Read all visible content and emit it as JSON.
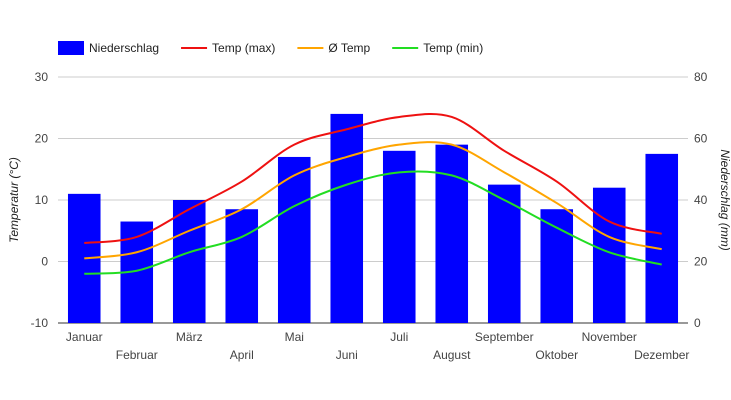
{
  "chart_data": {
    "type": "bar",
    "categories": [
      "Januar",
      "Februar",
      "März",
      "April",
      "Mai",
      "Juni",
      "Juli",
      "August",
      "September",
      "Oktober",
      "November",
      "Dezember"
    ],
    "series": [
      {
        "name": "Niederschlag",
        "kind": "bar",
        "axis": "right",
        "color": "#0000ff",
        "values": [
          42,
          33,
          40,
          37,
          54,
          68,
          56,
          58,
          45,
          37,
          44,
          55
        ]
      },
      {
        "name": "Temp (max)",
        "kind": "line",
        "axis": "left",
        "color": "#ee1111",
        "values": [
          3,
          4,
          8.5,
          13,
          19,
          21.5,
          23.5,
          23.5,
          18,
          13,
          6.5,
          4.5
        ]
      },
      {
        "name": "Ø Temp",
        "kind": "line",
        "axis": "left",
        "color": "#ffa500",
        "values": [
          0.5,
          1.5,
          5,
          8.5,
          14,
          17,
          19,
          19,
          14.5,
          9.5,
          4,
          2
        ]
      },
      {
        "name": "Temp (min)",
        "kind": "line",
        "axis": "left",
        "color": "#22dd22",
        "values": [
          -2,
          -1.5,
          1.5,
          4,
          9,
          12.5,
          14.5,
          14,
          10,
          5.5,
          1.5,
          -0.5
        ]
      }
    ],
    "ylabel_left": "Temperatur (°C)",
    "ylabel_right": "Niederschlag (mm)",
    "ylim_left": [
      -10,
      30
    ],
    "yticks_left": [
      -10,
      0,
      10,
      20,
      30
    ],
    "ylim_right": [
      0,
      80
    ],
    "yticks_right": [
      0,
      20,
      40,
      60,
      80
    ],
    "grid": true,
    "legend_position": "top-left"
  }
}
